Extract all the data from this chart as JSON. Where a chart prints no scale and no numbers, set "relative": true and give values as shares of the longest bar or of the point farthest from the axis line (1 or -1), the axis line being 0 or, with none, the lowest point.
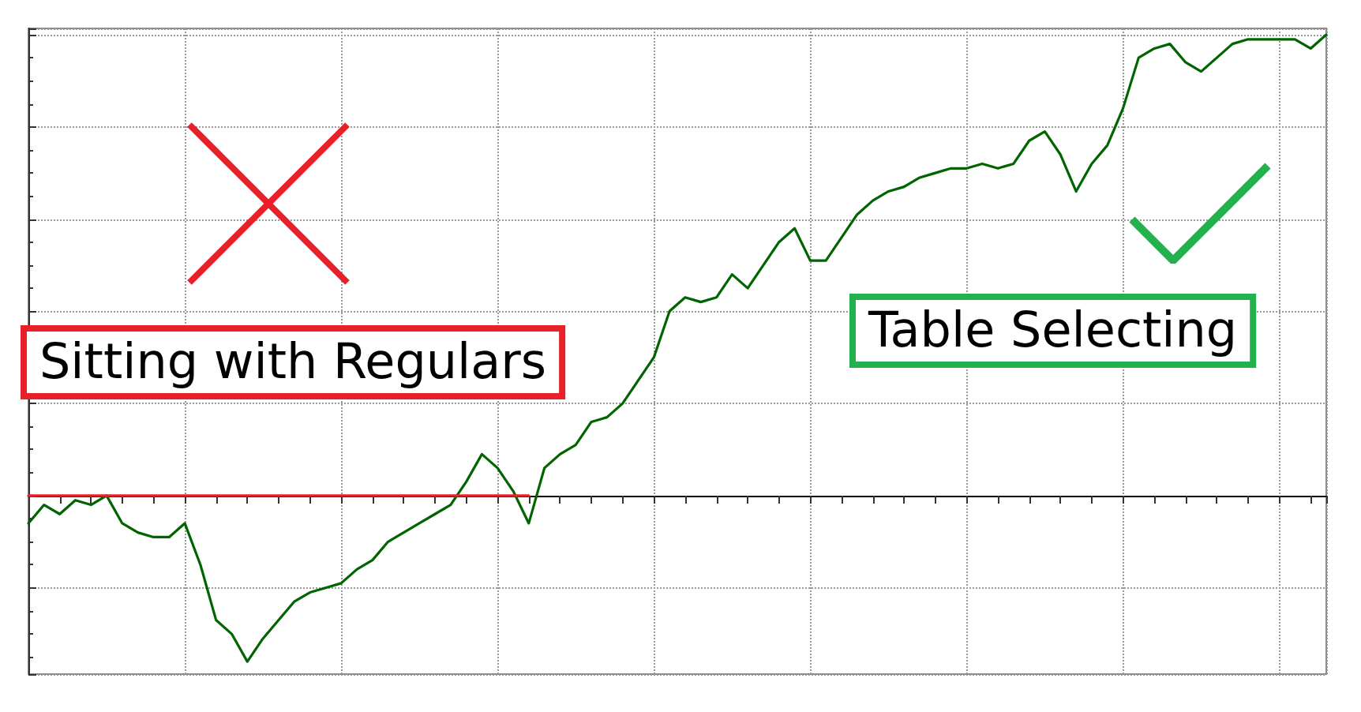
{
  "chart_data": {
    "type": "line",
    "relative": true,
    "grid": true,
    "marker": "none",
    "line_style": "solid",
    "categories": [
      null,
      null,
      null,
      null,
      null,
      null,
      null,
      null,
      null,
      null,
      null,
      null,
      null,
      null,
      null,
      null,
      null,
      null,
      null,
      null,
      null,
      null,
      null,
      null,
      null,
      null,
      null,
      null,
      null,
      null,
      null,
      null,
      null,
      null,
      null,
      null,
      null,
      null,
      null,
      null,
      null,
      null,
      null,
      null,
      null,
      null,
      null,
      null,
      null,
      null,
      null,
      null,
      null,
      null,
      null,
      null,
      null,
      null,
      null,
      null,
      null,
      null,
      null,
      null,
      null,
      null,
      null,
      null,
      null,
      null,
      null,
      null,
      null,
      null,
      null,
      null,
      null,
      null,
      null,
      null,
      null,
      null,
      null,
      null
    ],
    "series": [
      {
        "color": "#006400",
        "values": [
          -0.06,
          -0.02,
          -0.04,
          -0.01,
          -0.02,
          0,
          -0.06,
          -0.08,
          -0.09,
          -0.09,
          -0.06,
          -0.15,
          -0.27,
          -0.3,
          -0.36,
          -0.31,
          -0.27,
          -0.23,
          -0.21,
          -0.2,
          -0.19,
          -0.16,
          -0.14,
          -0.1,
          -0.08,
          -0.06,
          -0.04,
          -0.02,
          0.03,
          0.09,
          0.06,
          0.01,
          -0.06,
          0.06,
          0.09,
          0.11,
          0.16,
          0.17,
          0.2,
          0.25,
          0.3,
          0.4,
          0.43,
          0.42,
          0.43,
          0.48,
          0.45,
          0.5,
          0.55,
          0.58,
          0.51,
          0.51,
          0.56,
          0.61,
          0.64,
          0.66,
          0.67,
          0.69,
          0.7,
          0.71,
          0.71,
          0.72,
          0.71,
          0.72,
          0.77,
          0.79,
          0.74,
          0.66,
          0.72,
          0.76,
          0.84,
          0.95,
          0.97,
          0.98,
          0.94,
          0.92,
          0.95,
          0.98,
          0.99,
          0.99,
          0.99,
          0.99,
          0.97,
          1
        ]
      },
      {
        "color": "#e8202a",
        "values": [
          0,
          0,
          0,
          0,
          0,
          0,
          0,
          0,
          0,
          0,
          0,
          0,
          0,
          0,
          0,
          0,
          0,
          0,
          0,
          0,
          0,
          0,
          0,
          0,
          0,
          0,
          0,
          0,
          0,
          0,
          0,
          0,
          0,
          null,
          null,
          null,
          null,
          null,
          null,
          null,
          null,
          null,
          null,
          null,
          null,
          null,
          null,
          null,
          null,
          null,
          null,
          null,
          null,
          null,
          null,
          null,
          null,
          null,
          null,
          null,
          null,
          null,
          null,
          null,
          null,
          null,
          null,
          null,
          null,
          null,
          null,
          null,
          null,
          null,
          null,
          null,
          null,
          null,
          null,
          null,
          null,
          null,
          null,
          null
        ]
      }
    ],
    "annotations": [
      "Sitting with Regulars",
      "Table Selecting"
    ]
  }
}
